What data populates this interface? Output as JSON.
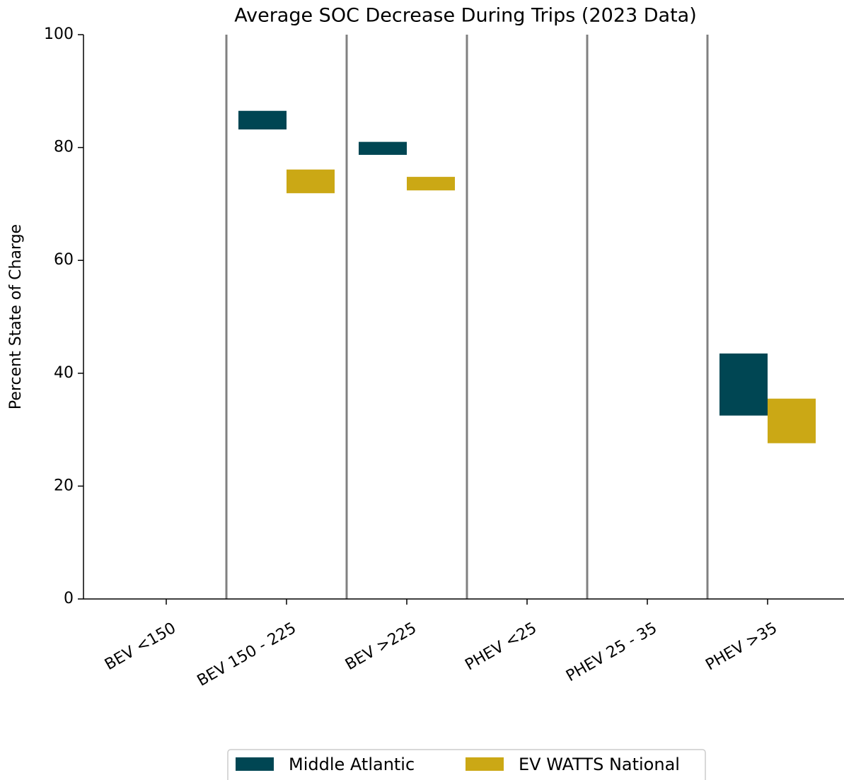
{
  "chart_data": {
    "type": "floating_bar",
    "title": "Average SOC Decrease During Trips (2023 Data)",
    "y_label": "Percent State of Charge",
    "categories": [
      "BEV <150",
      "BEV 150 - 225",
      "BEV >225",
      "PHEV <25",
      "PHEV 25 - 35",
      "PHEV >35"
    ],
    "series": [
      {
        "name": "Middle Atlantic",
        "color": "#004653",
        "low": [
          null,
          83.2,
          78.7,
          null,
          null,
          32.5
        ],
        "high": [
          null,
          86.5,
          81.0,
          null,
          null,
          43.5
        ]
      },
      {
        "name": "EV WATTS National",
        "color": "#cba815",
        "low": [
          null,
          71.9,
          72.4,
          null,
          null,
          27.6
        ],
        "high": [
          null,
          76.1,
          74.8,
          null,
          null,
          35.5
        ]
      }
    ],
    "ylim": [
      0,
      100
    ],
    "yticks": [
      0,
      20,
      40,
      60,
      80,
      100
    ],
    "category_separators": true,
    "legend": "bottom"
  }
}
